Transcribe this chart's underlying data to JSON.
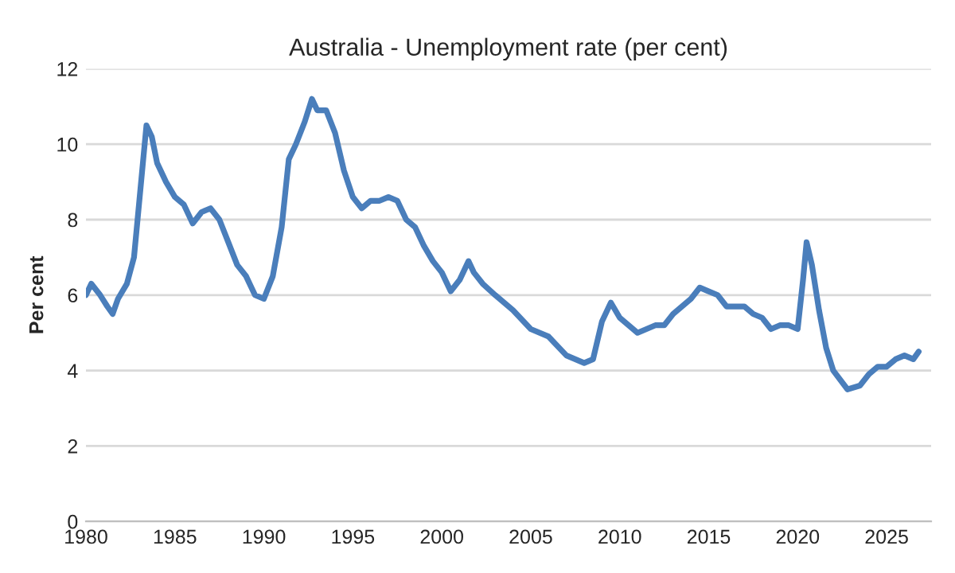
{
  "chart_data": {
    "type": "line",
    "title": "Australia - Unemployment rate (per cent)",
    "ylabel": "Per cent",
    "xlim": [
      1980,
      2027.5
    ],
    "xticks": [
      1980,
      1985,
      1990,
      1995,
      2000,
      2005,
      2010,
      2015,
      2020,
      2025
    ],
    "ylim": [
      0,
      12
    ],
    "yticks": [
      0,
      2,
      4,
      6,
      8,
      10,
      12
    ],
    "grid": "y",
    "line_style": "solid",
    "marker": "none",
    "series": [
      {
        "color": "#4a7ebb",
        "x": [
          1980.0,
          1980.3,
          1980.8,
          1981.2,
          1981.5,
          1981.8,
          1982.3,
          1982.7,
          1983.0,
          1983.2,
          1983.4,
          1983.7,
          1984.0,
          1984.5,
          1985.0,
          1985.5,
          1986.0,
          1986.5,
          1987.0,
          1987.5,
          1988.0,
          1988.5,
          1989.0,
          1989.5,
          1990.0,
          1990.5,
          1991.0,
          1991.4,
          1991.8,
          1992.3,
          1992.7,
          1993.0,
          1993.5,
          1994.0,
          1994.5,
          1995.0,
          1995.5,
          1996.0,
          1996.5,
          1997.0,
          1997.5,
          1998.0,
          1998.5,
          1999.0,
          1999.5,
          2000.0,
          2000.5,
          2001.0,
          2001.5,
          2001.8,
          2002.3,
          2003.0,
          2004.0,
          2005.0,
          2006.0,
          2007.0,
          2008.0,
          2008.5,
          2009.0,
          2009.5,
          2010.0,
          2010.5,
          2011.0,
          2012.0,
          2012.5,
          2013.0,
          2013.5,
          2014.0,
          2014.5,
          2015.0,
          2015.5,
          2016.0,
          2016.5,
          2017.0,
          2017.5,
          2018.0,
          2018.5,
          2019.0,
          2019.5,
          2020.0,
          2020.3,
          2020.5,
          2020.8,
          2021.2,
          2021.6,
          2022.0,
          2022.8,
          2023.5,
          2024.0,
          2024.5,
          2025.0,
          2025.5,
          2026.0,
          2026.5,
          2026.8
        ],
        "values": [
          6.0,
          6.3,
          6.0,
          5.7,
          5.5,
          5.9,
          6.3,
          7.0,
          8.5,
          9.5,
          10.5,
          10.2,
          9.5,
          9.0,
          8.6,
          8.4,
          7.9,
          8.2,
          8.3,
          8.0,
          7.4,
          6.8,
          6.5,
          6.0,
          5.9,
          6.5,
          7.8,
          9.6,
          10.0,
          10.6,
          11.2,
          10.9,
          10.9,
          10.3,
          9.3,
          8.6,
          8.3,
          8.5,
          8.5,
          8.6,
          8.5,
          8.0,
          7.8,
          7.3,
          6.9,
          6.6,
          6.1,
          6.4,
          6.9,
          6.6,
          6.3,
          6.0,
          5.6,
          5.1,
          4.9,
          4.4,
          4.2,
          4.3,
          5.3,
          5.8,
          5.4,
          5.2,
          5.0,
          5.2,
          5.2,
          5.5,
          5.7,
          5.9,
          6.2,
          6.1,
          6.0,
          5.7,
          5.7,
          5.7,
          5.5,
          5.4,
          5.1,
          5.2,
          5.2,
          5.1,
          6.4,
          7.4,
          6.8,
          5.6,
          4.6,
          4.0,
          3.5,
          3.6,
          3.9,
          4.1,
          4.1,
          4.3,
          4.4,
          4.3,
          4.5
        ]
      }
    ]
  }
}
